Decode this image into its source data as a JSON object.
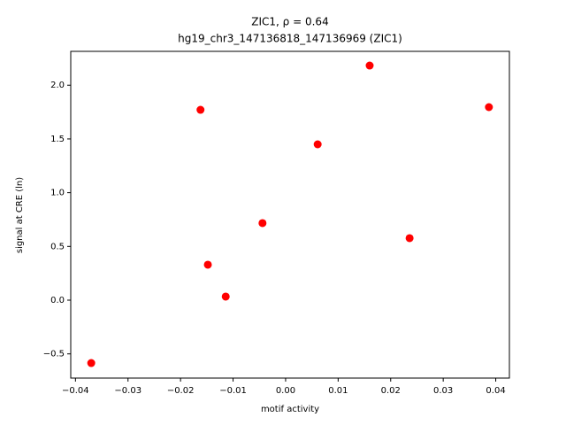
{
  "chart_data": {
    "type": "scatter",
    "title": "ZIC1, ρ = 0.64",
    "subtitle": "hg19_chr3_147136818_147136969 (ZIC1)",
    "x_label": "motif activity",
    "y_label": "signal at CRE (ln)",
    "series": [
      {
        "color": "#ff0000",
        "x": [
          -0.037,
          -0.0162,
          -0.0148,
          -0.0114,
          -0.0044,
          0.0061,
          0.016,
          0.0236,
          0.0387
        ],
        "values": [
          -0.585,
          1.771,
          0.33,
          0.033,
          0.717,
          1.45,
          2.183,
          0.577,
          1.796
        ]
      }
    ],
    "xlim": [
      -0.0409,
      0.0426
    ],
    "ylim": [
      -0.725,
      2.315
    ],
    "xticks": [
      {
        "value": -0.04,
        "label": "−0.04"
      },
      {
        "value": -0.03,
        "label": "−0.03"
      },
      {
        "value": -0.02,
        "label": "−0.02"
      },
      {
        "value": -0.01,
        "label": "−0.01"
      },
      {
        "value": 0,
        "label": "0.00"
      },
      0.01,
      0.02,
      0.03,
      0.04
    ],
    "yticks": [
      {
        "value": -0.5,
        "label": "−0.5"
      },
      {
        "value": 0,
        "label": "0.0"
      },
      0.5,
      {
        "value": 1,
        "label": "1.0"
      },
      1.5,
      {
        "value": 2,
        "label": "2.0"
      }
    ]
  }
}
